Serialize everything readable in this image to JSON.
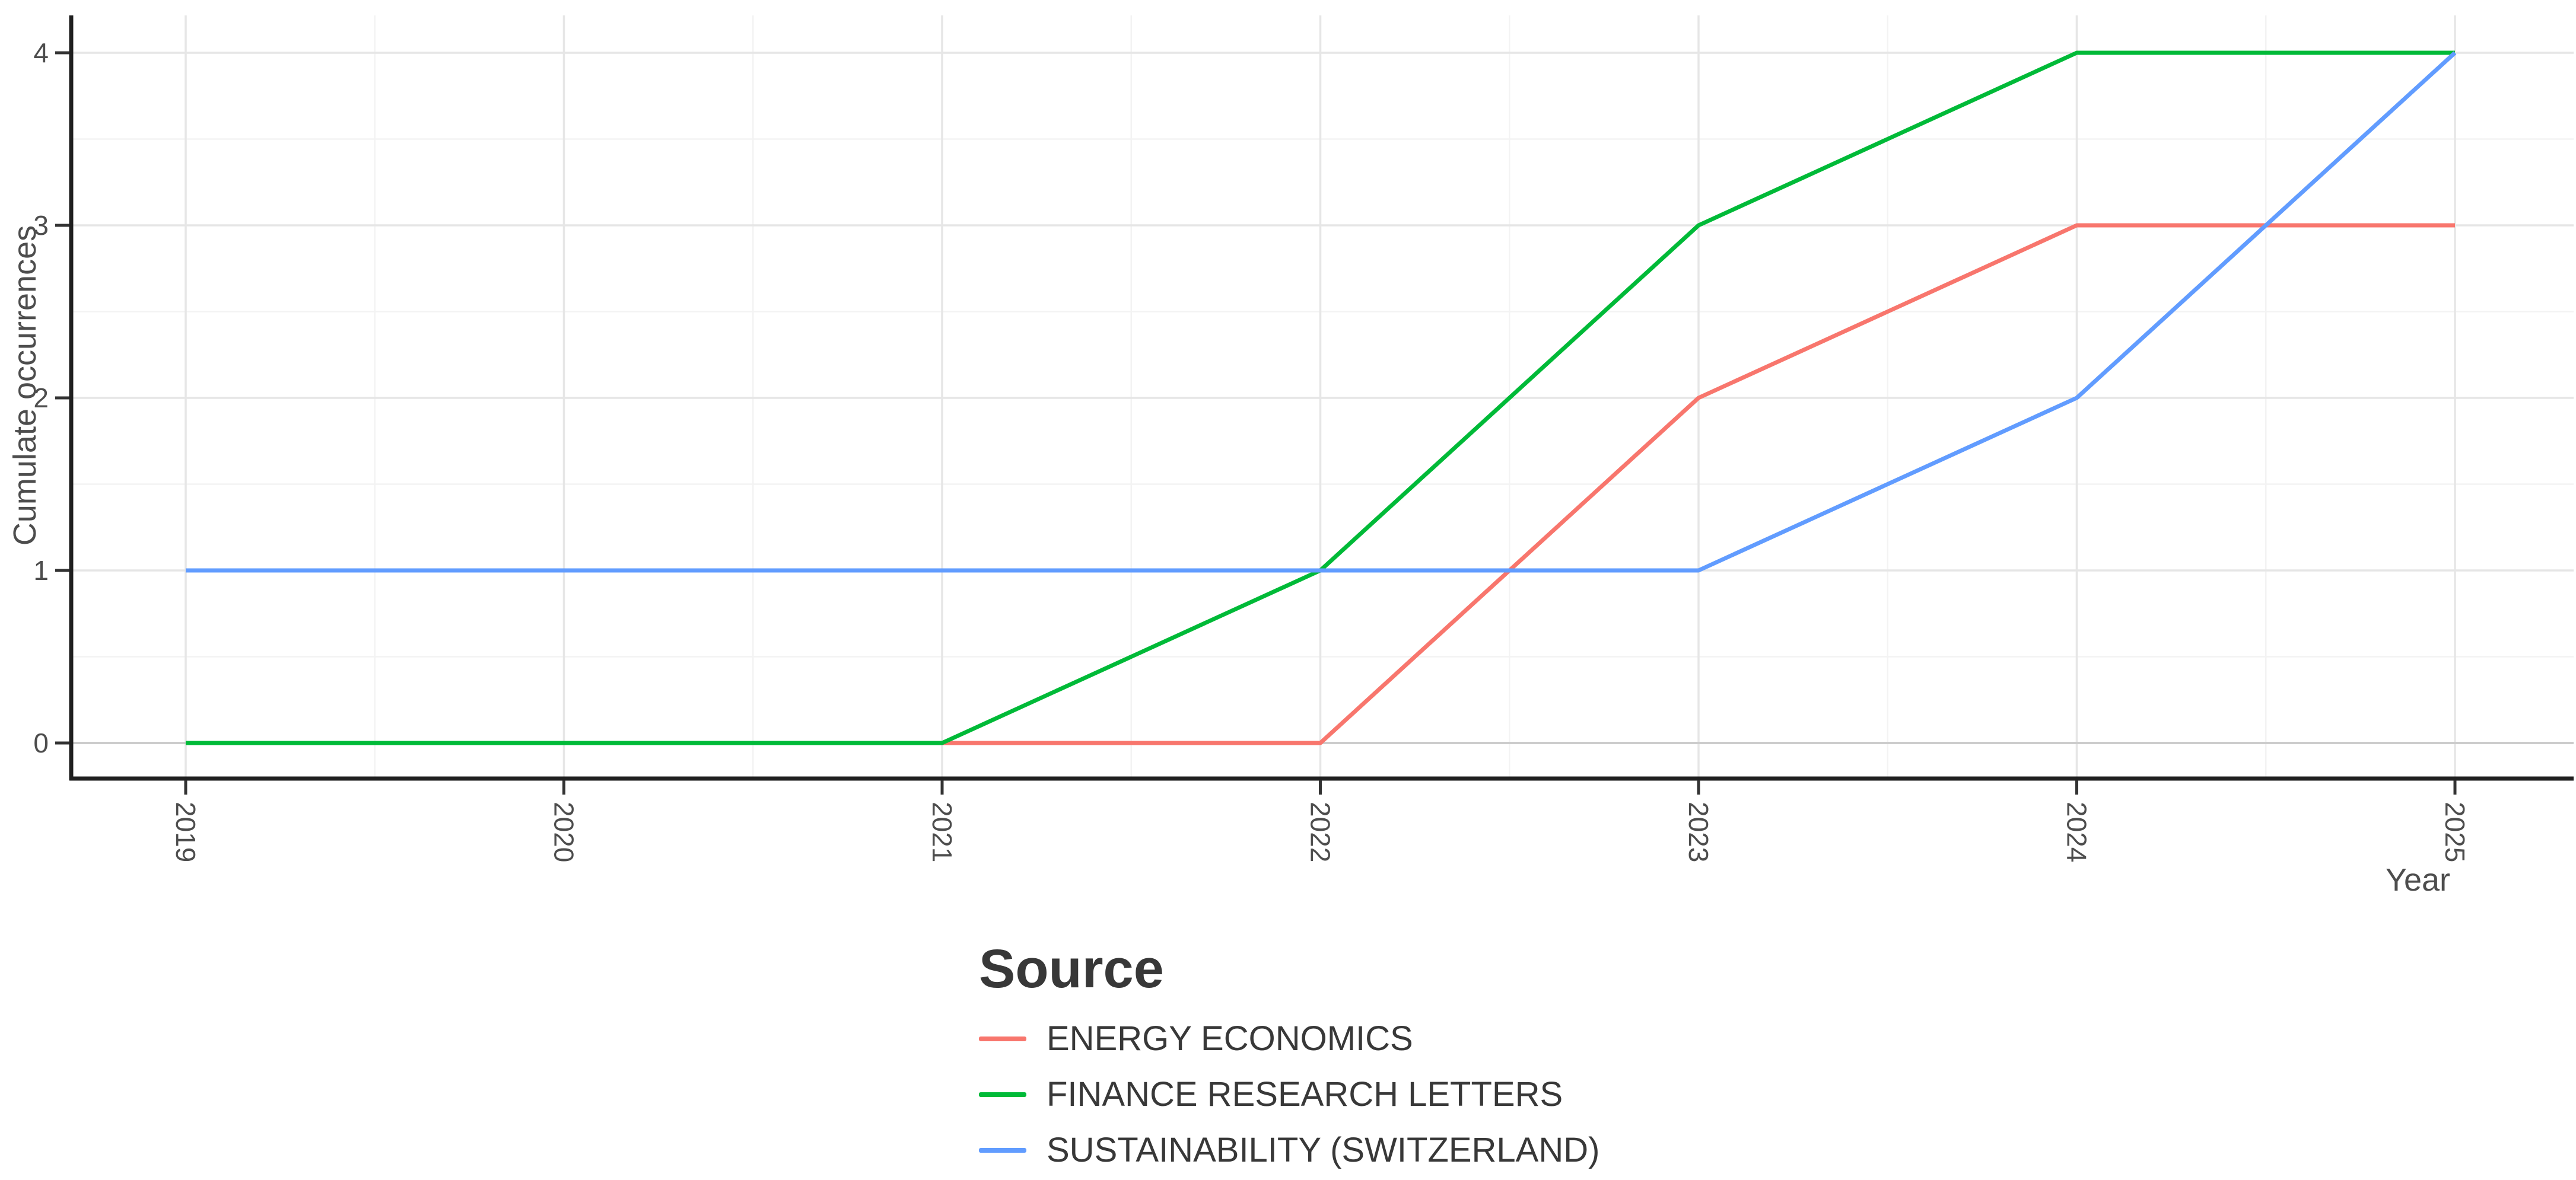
{
  "chart_data": {
    "type": "line",
    "title": "",
    "xlabel": "Year",
    "ylabel": "Cumulate occurrences",
    "x": [
      2019,
      2020,
      2021,
      2022,
      2023,
      2024,
      2025
    ],
    "x_tick_labels": [
      "2019",
      "2020",
      "2021",
      "2022",
      "2023",
      "2024",
      "2025"
    ],
    "y_ticks": [
      0,
      1,
      2,
      3,
      4
    ],
    "y_tick_labels": [
      "0",
      "1",
      "2",
      "3",
      "4"
    ],
    "xlim": [
      2019,
      2025
    ],
    "ylim": [
      0,
      4
    ],
    "grid": {
      "major": true,
      "minor": true
    },
    "legend_title": "Source",
    "legend_position": "bottom",
    "series": [
      {
        "name": "ENERGY ECONOMICS",
        "color": "#F8766D",
        "values": [
          0,
          0,
          0,
          0,
          2,
          3,
          3
        ]
      },
      {
        "name": "FINANCE RESEARCH LETTERS",
        "color": "#00BA38",
        "values": [
          0,
          0,
          0,
          1,
          3,
          4,
          4
        ]
      },
      {
        "name": "SUSTAINABILITY (SWITZERLAND)",
        "color": "#619CFF",
        "values": [
          1,
          1,
          1,
          1,
          1,
          2,
          4
        ]
      }
    ]
  },
  "colors": {
    "background": "#FFFFFF",
    "axis_line": "#1F1F1F",
    "tick_mark": "#333333",
    "tick_text": "#4D4D4D",
    "grid_major": "#E6E6E6",
    "grid_minor": "#F3F3F3",
    "zero_line": "#CCCCCC",
    "legend_text": "#383838"
  }
}
